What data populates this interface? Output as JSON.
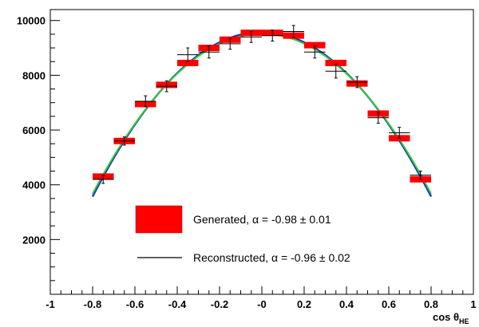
{
  "chart_data": {
    "type": "scatter",
    "xlabel": "cos θ",
    "xlabel_sub": "HE",
    "xlim": [
      -1,
      1
    ],
    "ylim": [
      0,
      10400
    ],
    "x_ticks": [
      -1,
      -0.8,
      -0.6,
      -0.4,
      -0.2,
      0,
      0.2,
      0.4,
      0.6,
      0.8,
      1
    ],
    "x_tick_labels": [
      "-1",
      "-0.8",
      "-0.6",
      "-0.4",
      "-0.2",
      "-0",
      "0.2",
      "0.4",
      "0.6",
      "0.8",
      "1"
    ],
    "y_ticks": [
      2000,
      4000,
      6000,
      8000,
      10000
    ],
    "y_tick_labels": [
      "2000",
      "4000",
      "6000",
      "8000",
      "10000"
    ],
    "series": [
      {
        "name": "Generated, α = -0.98 ± 0.01",
        "style": "bar-band",
        "color": "#ff0000",
        "x": [
          -0.75,
          -0.65,
          -0.55,
          -0.45,
          -0.35,
          -0.25,
          -0.15,
          -0.05,
          0.05,
          0.15,
          0.25,
          0.35,
          0.45,
          0.55,
          0.65,
          0.75
        ],
        "y": [
          4300,
          5600,
          6950,
          7650,
          8450,
          9000,
          9300,
          9550,
          9550,
          9450,
          9100,
          8450,
          7700,
          6600,
          5700,
          4200
        ]
      },
      {
        "name": "Reconstructed, α = -0.96 ± 0.02",
        "style": "error-points",
        "color": "#000000",
        "x": [
          -0.75,
          -0.65,
          -0.55,
          -0.45,
          -0.35,
          -0.25,
          -0.15,
          -0.05,
          0.05,
          0.15,
          0.25,
          0.35,
          0.45,
          0.55,
          0.65,
          0.75
        ],
        "y": [
          4200,
          5600,
          7050,
          7600,
          8750,
          8850,
          9150,
          9400,
          9450,
          9600,
          8850,
          8150,
          7750,
          6450,
          5900,
          4350
        ],
        "yerr": [
          150,
          150,
          200,
          200,
          250,
          220,
          200,
          200,
          200,
          220,
          220,
          250,
          200,
          200,
          200,
          150
        ]
      }
    ],
    "fits": [
      {
        "color": "#1030d0",
        "x_range": [
          -0.8,
          0.8
        ],
        "peak": 9580,
        "alpha": -0.98
      },
      {
        "color": "#33cc33",
        "x_range": [
          -0.8,
          0.8
        ],
        "peak": 9520,
        "alpha": -0.96
      }
    ],
    "legend": {
      "position": "lower-center",
      "entries": [
        {
          "label": "Generated, α = -0.98 ± 0.01",
          "marker": "red-box"
        },
        {
          "label": "Reconstructed, α = -0.96 ± 0.02",
          "marker": "black-line"
        }
      ]
    }
  }
}
